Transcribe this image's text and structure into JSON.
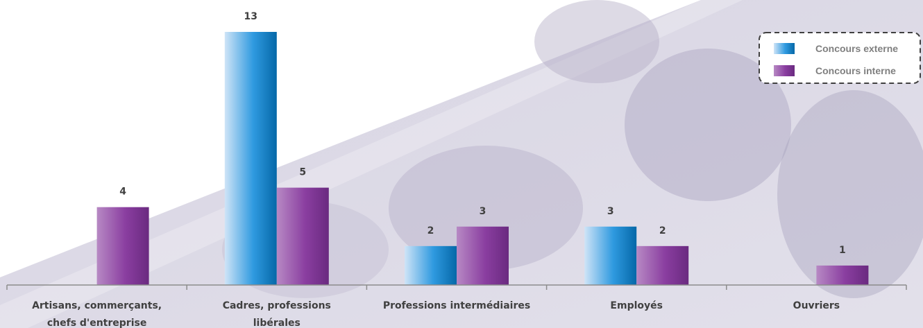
{
  "chart_data": {
    "type": "bar",
    "categories": [
      [
        "Artisans, commerçants,",
        "chefs d'entreprise"
      ],
      [
        "Cadres, professions",
        "libérales"
      ],
      [
        "Professions intermédiaires"
      ],
      [
        "Employés"
      ],
      [
        "Ouvriers"
      ]
    ],
    "series": [
      {
        "name": "Concours externe",
        "values": [
          null,
          13,
          2,
          3,
          null
        ],
        "color": "#0a7fc9"
      },
      {
        "name": "Concours interne",
        "values": [
          4,
          5,
          3,
          2,
          1
        ],
        "color": "#7a2f8e"
      }
    ],
    "title": "",
    "xlabel": "",
    "ylabel": "",
    "ylim": [
      0,
      13
    ],
    "grid": false,
    "legend_position": "top-right"
  }
}
